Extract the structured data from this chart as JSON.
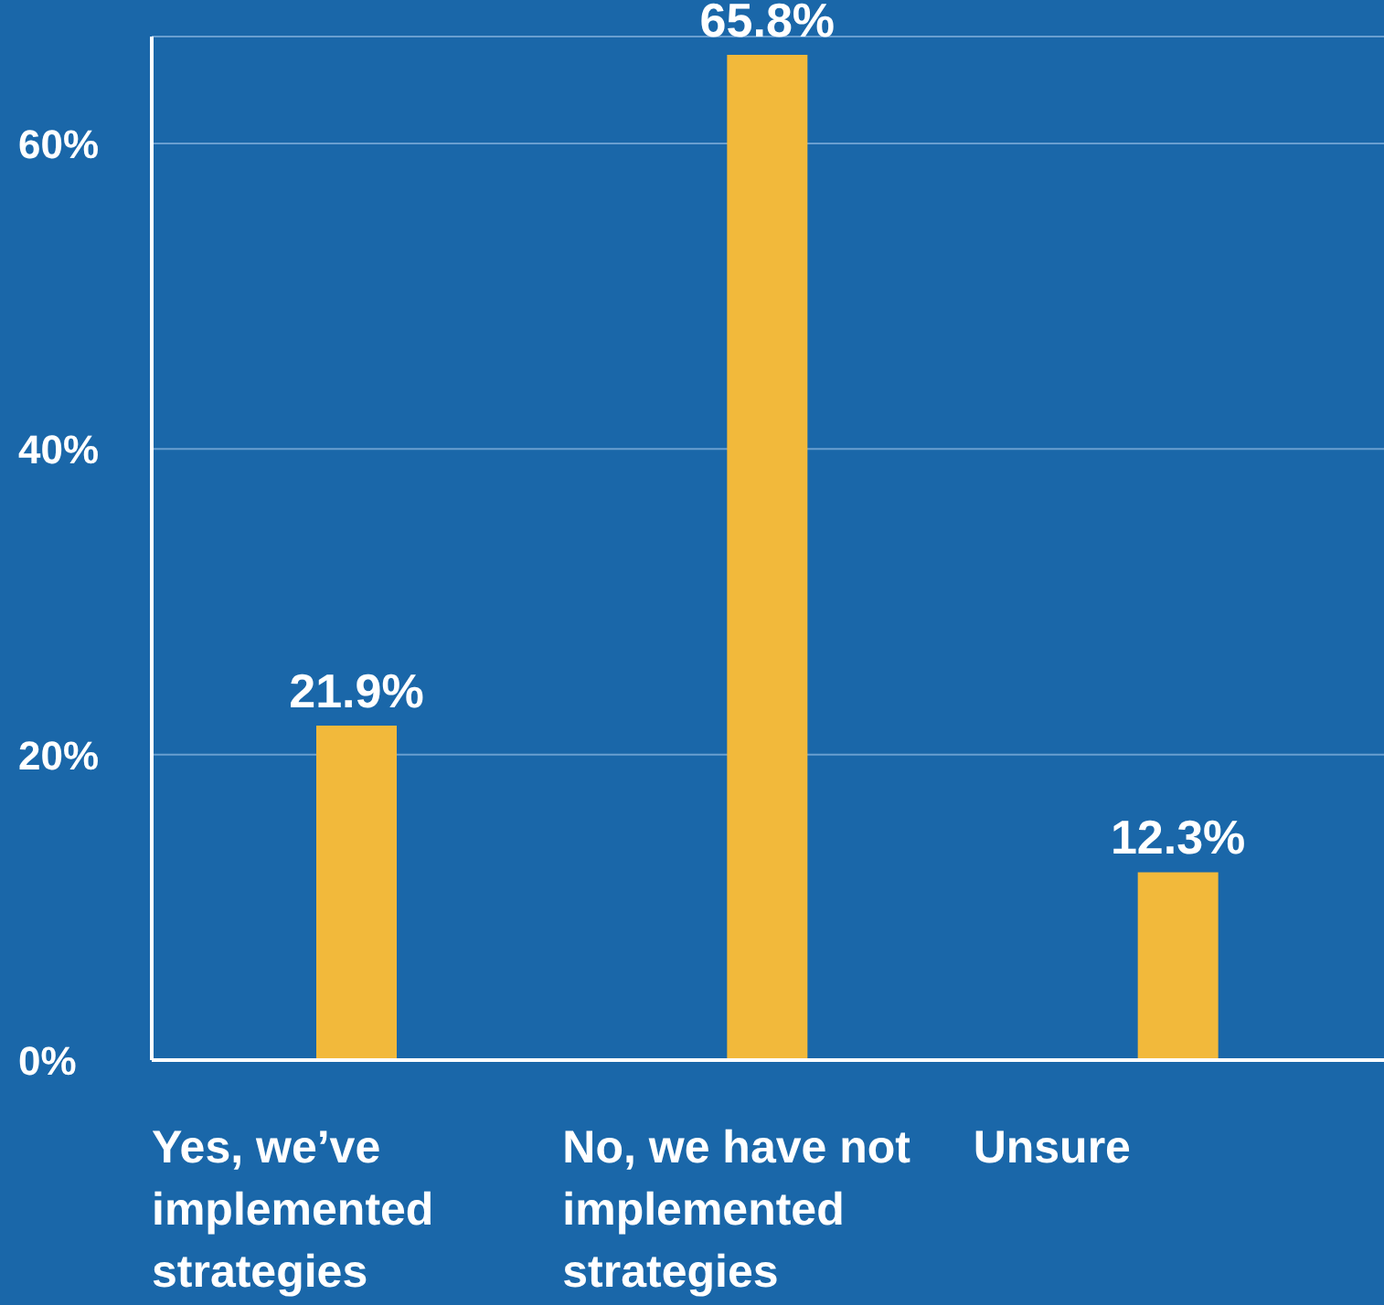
{
  "chart_data": {
    "type": "bar",
    "categories": [
      "Yes, we’ve implemented strategies",
      "No, we have not implemented strategies",
      "Unsure"
    ],
    "values": [
      21.9,
      65.8,
      12.3
    ],
    "color": "#f2b93b",
    "value_labels": [
      "21.9%",
      "65.8%",
      "12.3%"
    ],
    "ylim": [
      0,
      67
    ],
    "yticks": [
      {
        "value": 0,
        "label": "0%"
      },
      {
        "value": 20,
        "label": "20%"
      },
      {
        "value": 40,
        "label": "40%"
      },
      {
        "value": 60,
        "label": "60%"
      }
    ],
    "grid": "y",
    "legend": false
  }
}
